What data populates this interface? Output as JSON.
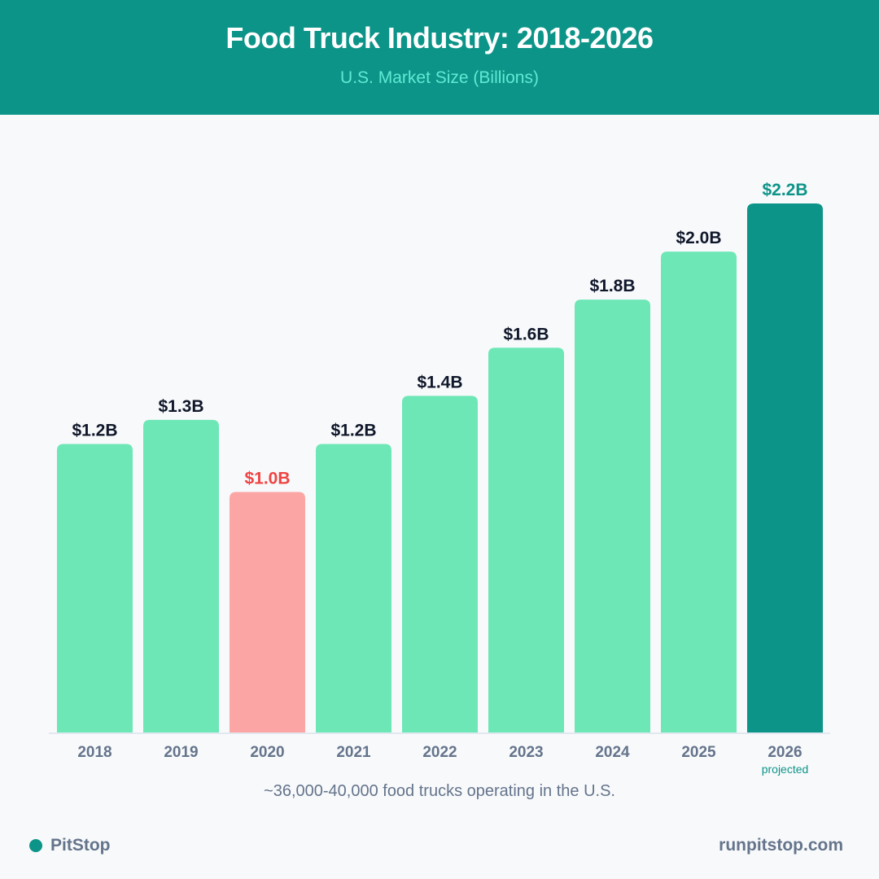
{
  "header": {
    "title": "Food Truck Industry: 2018-2026",
    "subtitle": "U.S. Market Size (Billions)"
  },
  "chart_data": {
    "type": "bar",
    "title": "Food Truck Industry: 2018-2026",
    "subtitle": "U.S. Market Size (Billions)",
    "categories": [
      "2018",
      "2019",
      "2020",
      "2021",
      "2022",
      "2023",
      "2024",
      "2025",
      "2026"
    ],
    "values": [
      1.2,
      1.3,
      1.0,
      1.2,
      1.4,
      1.6,
      1.8,
      2.0,
      2.2
    ],
    "data_labels": [
      "$1.2B",
      "$1.3B",
      "$1.0B",
      "$1.2B",
      "$1.4B",
      "$1.6B",
      "$1.8B",
      "$2.0B",
      "$2.2B"
    ],
    "category_notes": {
      "2026": "projected"
    },
    "ylim": [
      0,
      2.2
    ],
    "grid": false,
    "colors": {
      "default": "#6ee7b7",
      "2020": "#fca5a5",
      "2026": "#0d9488"
    },
    "label_colors": {
      "default": "#0f172a",
      "2020": "#ef4444",
      "2026": "#0d9488"
    }
  },
  "footnote": "~36,000-40,000 food trucks operating in the U.S.",
  "footer": {
    "brand": "PitStop",
    "url": "runpitstop.com"
  }
}
